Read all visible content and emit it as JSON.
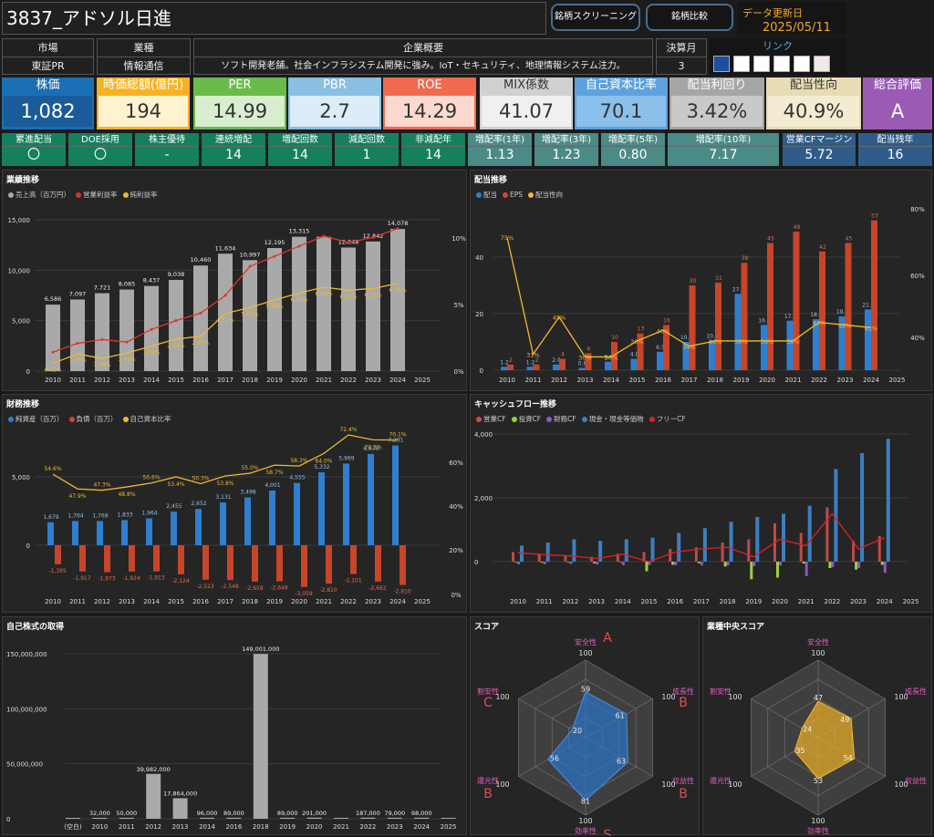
{
  "header": {
    "title": "3837_アドソル日進",
    "btn1": "銘柄スクリーニング",
    "btn2": "銘柄比較",
    "update_label": "データ更新日",
    "update_date": "2025/05/11"
  },
  "info": {
    "market_h": "市場",
    "market_v": "東証PR",
    "industry_h": "業種",
    "industry_v": "情報通信",
    "summary_h": "企業概要",
    "summary_v": "ソフト開発老舗。社会インフラシステム開発に強み。IoT・セキュリティ、地理情報システム注力。",
    "fy_h": "決算月",
    "fy_v": "3",
    "link_h": "リンク"
  },
  "tiles": [
    {
      "label": "株価",
      "value": "1,082",
      "color": "#1a6fb5",
      "vbg": "#1a5c9a",
      "vcol": "#fff"
    },
    {
      "label": "時価総額(億円)",
      "value": "194",
      "color": "#f7b225",
      "vbg": "#fff3cf",
      "vcol": "#333"
    },
    {
      "label": "PER",
      "value": "14.99",
      "color": "#6bbb4a",
      "vbg": "#d9eecf",
      "vcol": "#333"
    },
    {
      "label": "PBR",
      "value": "2.7",
      "color": "#89bfe3",
      "vbg": "#dcecf8",
      "vcol": "#333"
    },
    {
      "label": "ROE",
      "value": "14.29",
      "color": "#f06a4f",
      "vbg": "#fbd9cf",
      "vcol": "#333"
    },
    {
      "label": "MIX係数",
      "value": "41.07",
      "color": "#d0d0d0",
      "vbg": "#f0f0f0",
      "vcol": "#333"
    },
    {
      "label": "自己資本比率",
      "value": "70.1",
      "color": "#5da2de",
      "vbg": "#8ac0ea",
      "vcol": "#333"
    },
    {
      "label": "配当利回り",
      "value": "3.42%",
      "color": "#a6a6a6",
      "vbg": "#c9c9c9",
      "vcol": "#333"
    },
    {
      "label": "配当性向",
      "value": "40.9%",
      "color": "#e8dcb4",
      "vbg": "#f4ecd2",
      "vcol": "#333"
    },
    {
      "label": "総合評価",
      "value": "A",
      "color": "#9b5bb5",
      "vbg": "#9b5bb5",
      "vcol": "#fff"
    }
  ],
  "small": [
    {
      "label": "累進配当",
      "value": "〇",
      "bg": "#14805e"
    },
    {
      "label": "DOE採用",
      "value": "〇",
      "bg": "#14805e"
    },
    {
      "label": "株主優待",
      "value": "-",
      "bg": "#14805e"
    },
    {
      "label": "連続増配",
      "value": "14",
      "bg": "#14805e"
    },
    {
      "label": "増配回数",
      "value": "14",
      "bg": "#14805e"
    },
    {
      "label": "減配回数",
      "value": "1",
      "bg": "#14805e"
    },
    {
      "label": "非減配年",
      "value": "14",
      "bg": "#14805e"
    },
    {
      "label": "増配率(1年)",
      "value": "1.13",
      "bg": "#4a8b88"
    },
    {
      "label": "増配率(3年)",
      "value": "1.23",
      "bg": "#4a8b88"
    },
    {
      "label": "増配率(5年)",
      "value": "0.80",
      "bg": "#4a8b88"
    },
    {
      "label": "増配率(10年)",
      "value": "7.17",
      "bg": "#4a8b88"
    },
    {
      "label": "営業CFマージン",
      "value": "5.72",
      "bg": "#2f5c8a"
    },
    {
      "label": "配当残年",
      "value": "16",
      "bg": "#2f5c8a"
    }
  ],
  "chart_data": [
    {
      "type": "bar",
      "title": "業績推移",
      "legend": [
        "売上高（百万円）",
        "営業利益率",
        "純利益率"
      ],
      "x": [
        "2010",
        "2011",
        "2012",
        "2013",
        "2014",
        "2015",
        "2016",
        "2017",
        "2018",
        "2019",
        "2020",
        "2021",
        "2022",
        "2023",
        "2024",
        "2025"
      ],
      "sales": [
        6586,
        7097,
        7721,
        8085,
        8437,
        9038,
        10460,
        11634,
        10997,
        12195,
        13315,
        null,
        12248,
        12842,
        14078,
        null
      ],
      "op_margin": [
        1.5,
        2.2,
        2.5,
        2.3,
        3.3,
        4.0,
        4.6,
        6.0,
        8.3,
        9.1,
        9.9,
        10.7,
        10.2,
        10.6,
        11.3
      ],
      "net_margin": [
        0.62,
        1.36,
        1.0,
        1.43,
        1.98,
        2.54,
        2.76,
        4.57,
        5.03,
        5.64,
        6.19,
        6.65,
        6.41,
        6.55,
        6.95
      ],
      "yticks": [
        "0",
        "5,000",
        "10,000",
        "15,000"
      ],
      "y2ticks": [
        "0%",
        "5%",
        "10%"
      ]
    },
    {
      "type": "bar",
      "title": "配当推移",
      "legend": [
        "配当",
        "EPS",
        "配当性向"
      ],
      "x": [
        "2010",
        "2011",
        "2012",
        "2013",
        "2014",
        "2015",
        "2016",
        "2017",
        "2018",
        "2019",
        "2020",
        "2021",
        "2022",
        "2023",
        "2024",
        "2025"
      ],
      "dividend": [
        1.2,
        1.2,
        2.0,
        0.8,
        3.0,
        4.0,
        6.5,
        10.0,
        10.5,
        27.0,
        16.0,
        17.5,
        18.0,
        19.0,
        21.5
      ],
      "eps": [
        2,
        2,
        4,
        6,
        10,
        13,
        16,
        30,
        31,
        38,
        45,
        49,
        42,
        45,
        53
      ],
      "payout": [
        75,
        31,
        45,
        30,
        30,
        36,
        40,
        34,
        36,
        36,
        36,
        36,
        43,
        42,
        41
      ],
      "yticks": [
        "0",
        "20",
        "40"
      ],
      "y2ticks": [
        "40%",
        "60%",
        "80%"
      ]
    },
    {
      "type": "bar",
      "title": "財務推移",
      "legend": [
        "純資産（百万）",
        "負債（百万）",
        "自己資本比率"
      ],
      "x": [
        "2010",
        "2011",
        "2012",
        "2013",
        "2014",
        "2015",
        "2016",
        "2017",
        "2018",
        "2019",
        "2020",
        "2021",
        "2022",
        "2023",
        "2024",
        "2025"
      ],
      "equity": [
        1679,
        1764,
        1769,
        1833,
        1964,
        2455,
        2652,
        3131,
        3498,
        4001,
        4555,
        5332,
        5969,
        6676,
        7291
      ],
      "liab": [
        -1395,
        -1917,
        -1973,
        -1924,
        -1913,
        -2124,
        -2523,
        -2548,
        -2658,
        -2648,
        -3059,
        -2810,
        -2101,
        -2662,
        -2910
      ],
      "ratio": [
        54.6,
        47.9,
        47.3,
        48.8,
        50.6,
        53.4,
        50.3,
        53.8,
        55.0,
        58.7,
        58.3,
        64.0,
        72.4,
        70.2,
        70.1
      ],
      "yticks": [
        "0",
        "5,000"
      ],
      "y2ticks": [
        "0%",
        "20%",
        "40%",
        "60%"
      ]
    },
    {
      "type": "bar",
      "title": "キャッシュフロー推移",
      "legend": [
        "営業CF",
        "投資CF",
        "財務CF",
        "現金・現金等価物",
        "フリーCF"
      ],
      "x": [
        "2010",
        "2011",
        "2012",
        "2013",
        "2014",
        "2015",
        "2016",
        "2017",
        "2018",
        "2019",
        "2020",
        "2021",
        "2022",
        "2023",
        "2024",
        "2025"
      ],
      "yticks": [
        "0",
        "2,000",
        "4,000"
      ]
    },
    {
      "type": "bar",
      "title": "自己株式の取得",
      "x": [
        "(空白)",
        "2010",
        "2011",
        "2012",
        "2013",
        "2014",
        "2016",
        "2018",
        "2019",
        "2020",
        "2021",
        "2022",
        "2023",
        "2024",
        "2025"
      ],
      "values": [
        0,
        32000,
        50000,
        39982000,
        17864000,
        96000,
        89000,
        149001000,
        89000,
        201000,
        0,
        187000,
        79000,
        98000,
        0
      ],
      "labels": [
        "",
        "32,000",
        "50,000",
        "39,982,000",
        "17,864,000",
        "96,000",
        "89,000",
        "149,001,000",
        "89,000",
        "201,000",
        "",
        "187,000",
        "79,000",
        "98,000",
        ""
      ],
      "yticks": [
        "0",
        "50,000,000",
        "100,000,000",
        "150,000,000"
      ]
    },
    {
      "type": "radar",
      "title": "スコア",
      "axes": [
        "安全性",
        "成長性",
        "収益性",
        "効率性",
        "還元性",
        "割安性"
      ],
      "values": [
        59,
        61,
        63,
        81,
        56,
        20
      ],
      "grades": [
        "A",
        "B",
        "B",
        "S",
        "B",
        "C"
      ]
    },
    {
      "type": "radar",
      "title": "業種中央スコア",
      "axes": [
        "安全性",
        "成長性",
        "収益性",
        "効率性",
        "還元性",
        "割安性"
      ],
      "values": [
        47,
        49,
        54,
        53,
        35,
        24
      ]
    }
  ]
}
